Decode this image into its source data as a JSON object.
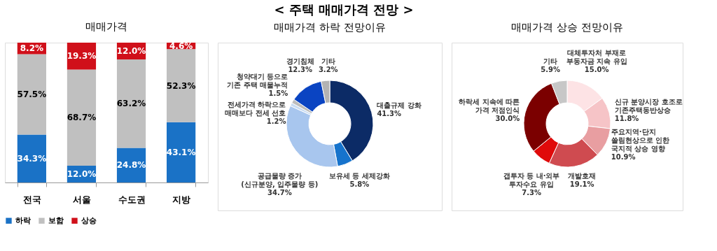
{
  "chart_data": [
    {
      "type": "bar",
      "title": "매매가격",
      "annotations": [
        "< 주택 매매가격 전망 >"
      ],
      "categories": [
        "전국",
        "서울",
        "수도권",
        "지방"
      ],
      "stacked": true,
      "legend": "bottom",
      "grid": false,
      "series": [
        {
          "name": "하락",
          "color": "#1a72c6",
          "values": [
            34.3,
            12.0,
            24.8,
            43.1
          ],
          "value_labels": [
            "34.3%",
            "12.0%",
            "24.8%",
            "43.1%"
          ]
        },
        {
          "name": "보합",
          "color": "#c0c0c0",
          "values": [
            57.5,
            68.7,
            63.2,
            52.3
          ],
          "value_labels": [
            "57.5%",
            "68.7%",
            "63.2%",
            "52.3%"
          ]
        },
        {
          "name": "상승",
          "color": "#d0101a",
          "values": [
            8.2,
            19.3,
            12.0,
            4.6
          ],
          "value_labels": [
            "8.2%",
            "19.3%",
            "12.0%",
            "4.6%"
          ]
        }
      ]
    },
    {
      "type": "donut",
      "title": "매매가격 하락 전망이유",
      "categories": [
        "대출규제 강화",
        "보유세 등 세제강화",
        "공급물량 증가\n(신규분양, 입주물량 등)",
        "전세가격 하락으로\n매매보다 전세 선호",
        "청약대기 등으로\n기존 주택 매물누적",
        "경기침체",
        "기타"
      ],
      "values": [
        41.3,
        5.8,
        34.7,
        1.2,
        1.5,
        12.3,
        3.2
      ],
      "colors": [
        "#0c2b66",
        "#1673cc",
        "#a8c6ee",
        "#c9dcf2",
        "#bdbdbd",
        "#0a44c2",
        "#b3b3b3"
      ],
      "value_labels": [
        "41.3%",
        "5.8%",
        "34.7%",
        "1.2%",
        "1.5%",
        "12.3%",
        "3.2%"
      ]
    },
    {
      "type": "donut",
      "title": "매매가격 상승 전망이유",
      "categories": [
        "대체투자처 부재로\n부동자금 지속 유입",
        "신규 분양시장 호조로\n기존주택동반상승",
        "주요지역·단지\n쏠림현상으로 인한\n국지적 상승 영향",
        "개발호재",
        "갭투자 등 내·외부\n투자수요 유입",
        "하락세 지속에 따른\n가격 저점인식",
        "기타"
      ],
      "values": [
        15.0,
        11.8,
        10.9,
        19.1,
        7.3,
        30.0,
        5.9
      ],
      "colors": [
        "#fde3e5",
        "#f6c4c7",
        "#e89ea1",
        "#cf4b50",
        "#e00a0a",
        "#7b0000",
        "#c7c7c7"
      ],
      "value_labels": [
        "15.0%",
        "11.8%",
        "10.9%",
        "19.1%",
        "7.3%",
        "30.0%",
        "5.9%"
      ]
    }
  ]
}
